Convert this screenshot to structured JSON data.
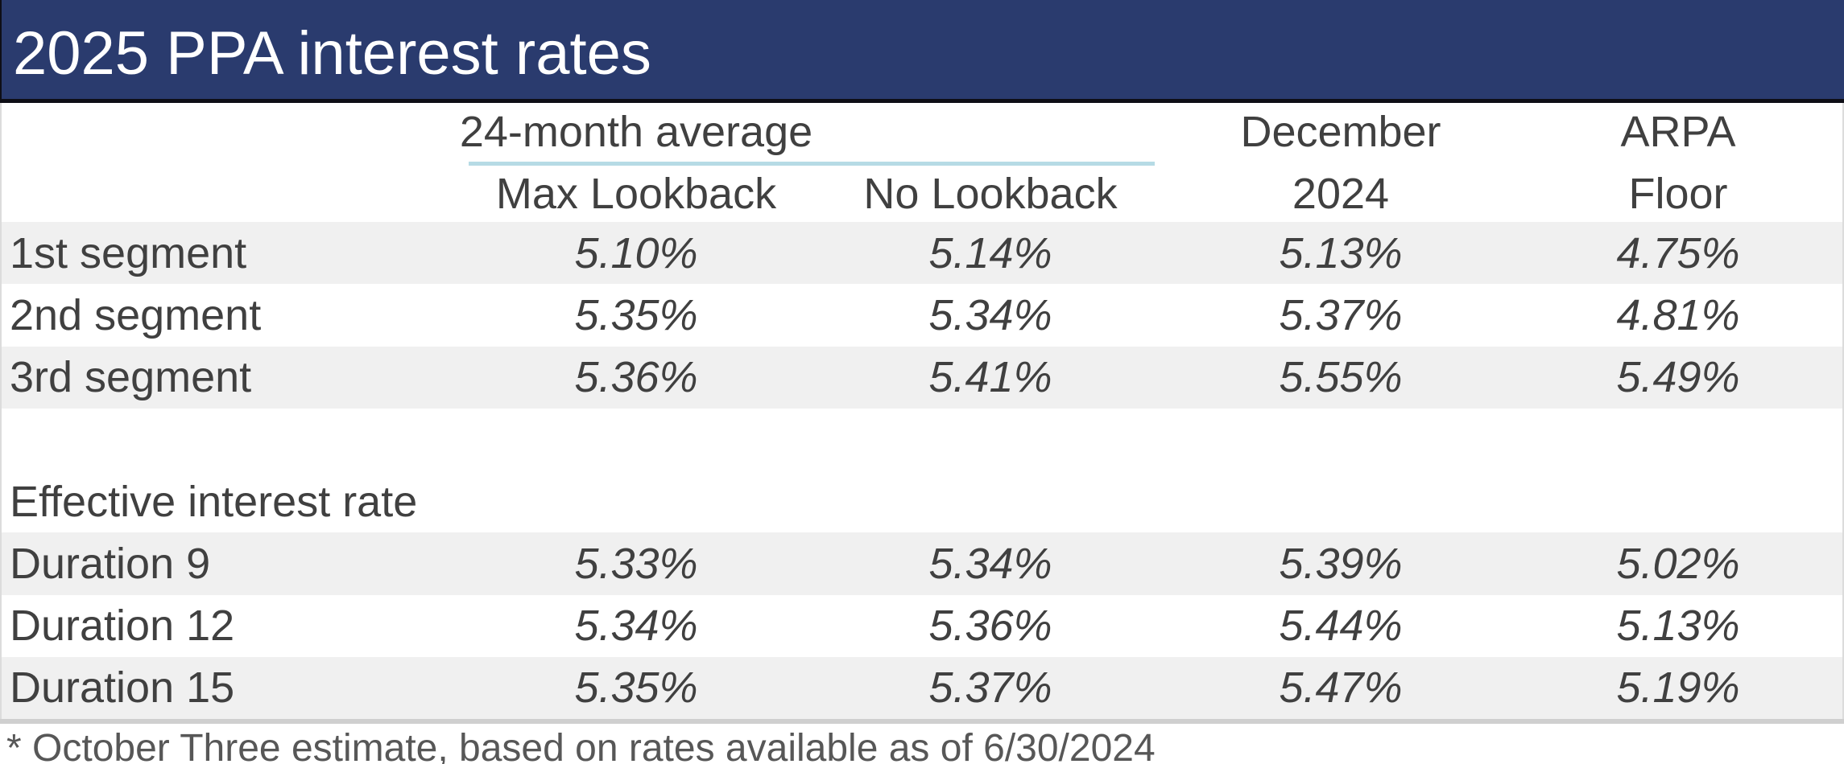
{
  "title": "2025 PPA interest rates",
  "header": {
    "group_label": "24-month average",
    "row1": {
      "col4": "December",
      "col5": "ARPA"
    },
    "row2": {
      "col2": "Max Lookback",
      "col3": "No Lookback",
      "col4": "2024",
      "col5": "Floor"
    }
  },
  "rows": [
    {
      "label": "1st segment",
      "values": [
        "5.10%",
        "5.14%",
        "5.13%",
        "4.75%"
      ]
    },
    {
      "label": "2nd segment",
      "values": [
        "5.35%",
        "5.34%",
        "5.37%",
        "4.81%"
      ]
    },
    {
      "label": "3rd segment",
      "values": [
        "5.36%",
        "5.41%",
        "5.55%",
        "5.49%"
      ]
    },
    {
      "label": "",
      "values": [
        "",
        "",
        "",
        ""
      ]
    },
    {
      "label": "Effective interest rate",
      "values": [
        "",
        "",
        "",
        ""
      ]
    },
    {
      "label": "Duration 9",
      "values": [
        "5.33%",
        "5.34%",
        "5.39%",
        "5.02%"
      ]
    },
    {
      "label": "Duration 12",
      "values": [
        "5.34%",
        "5.36%",
        "5.44%",
        "5.13%"
      ]
    },
    {
      "label": "Duration 15",
      "values": [
        "5.35%",
        "5.37%",
        "5.47%",
        "5.19%"
      ]
    }
  ],
  "footnote": "* October Three estimate, based on rates available as of 6/30/2024",
  "colors": {
    "header_bg": "#2A3B6E",
    "header_border": "#0E0E16",
    "row_shade": "#F0F0F0",
    "table_text": "#404040",
    "footnote_text": "#575757",
    "group_underline": "#B6DBE5",
    "divider": "#CFCFCF",
    "edge_border": "#DCDCDC"
  }
}
